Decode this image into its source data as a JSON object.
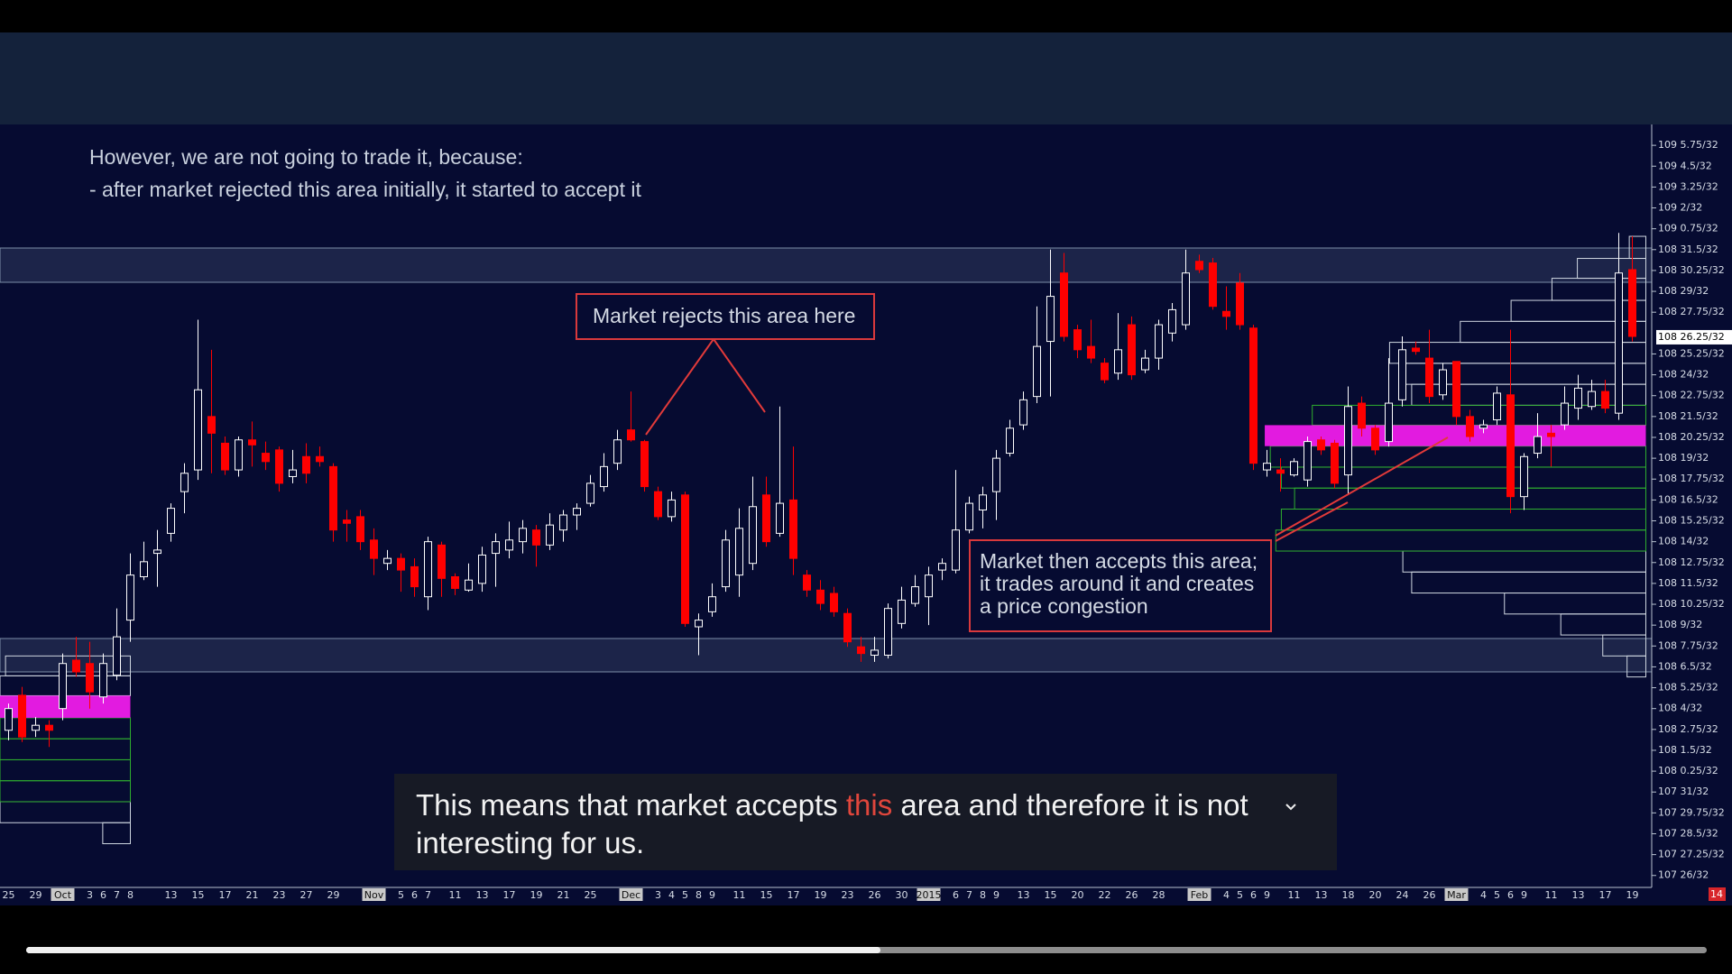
{
  "notes": [
    "However, we are not going to trade it, because:",
    "- after market rejected this area initially, it started to accept it"
  ],
  "annotations": [
    {
      "text": "Market rejects this area here"
    },
    {
      "lines": [
        "Market then accepts this area;",
        "it trades around it and creates",
        "a price congestion"
      ]
    }
  ],
  "caption": {
    "parts": [
      "This means that market accepts ",
      "this",
      " area and therefore it is not interesting for us."
    ]
  },
  "corner_label": "14",
  "chart_data": {
    "type": "candlestick",
    "categories": [
      "25",
      null,
      "29",
      null,
      "Oct",
      null,
      "3",
      "6",
      "7",
      "8",
      null,
      null,
      "13",
      null,
      "15",
      null,
      "17",
      null,
      "21",
      null,
      "23",
      null,
      "27",
      null,
      "29",
      null,
      null,
      "Nov",
      null,
      "5",
      "6",
      "7",
      null,
      "11",
      null,
      "13",
      null,
      "17",
      null,
      "19",
      null,
      "21",
      null,
      "25",
      null,
      null,
      "Dec",
      null,
      "3",
      "4",
      "5",
      "8",
      "9",
      null,
      "11",
      null,
      "15",
      null,
      "17",
      null,
      "19",
      null,
      "23",
      null,
      "26",
      null,
      "30",
      null,
      "2015",
      null,
      "6",
      "7",
      "8",
      "9",
      null,
      "13",
      null,
      "15",
      null,
      "20",
      null,
      "22",
      null,
      "26",
      null,
      "28",
      null,
      null,
      "Feb",
      null,
      "4",
      "5",
      "6",
      "9",
      null,
      "11",
      null,
      "13",
      null,
      "18",
      null,
      "20",
      null,
      "24",
      null,
      "26",
      null,
      "Mar",
      null,
      "4",
      "5",
      "6",
      "9",
      null,
      "11",
      null,
      "13",
      null,
      "17",
      null,
      "19"
    ],
    "open": [
      3458.7,
      3460.8,
      3458.7,
      3459,
      3460,
      3462.9,
      3462.7,
      3460.7,
      3462,
      3465.3,
      3467.9,
      3469.3,
      3470.5,
      3473,
      3474.3,
      3477.5,
      3475.9,
      3474.3,
      3476.1,
      3475.3,
      3475.5,
      3473.9,
      3475.1,
      3475.1,
      3474.5,
      3471.3,
      3471.5,
      3470.1,
      3468.7,
      3469,
      3468.5,
      3466.7,
      3469.8,
      3467.9,
      3467.1,
      3467.5,
      3469.3,
      3469.5,
      3470,
      3470.7,
      3469.8,
      3470.7,
      3471.6,
      3472.3,
      3473.3,
      3474.7,
      3476.7,
      3476,
      3473,
      3471.5,
      3472.8,
      3464.9,
      3465.8,
      3467.3,
      3468,
      3468.7,
      3472.8,
      3470.5,
      3472.5,
      3468,
      3467.1,
      3466.9,
      3465.7,
      3463.7,
      3463.2,
      3463.2,
      3465.1,
      3466.3,
      3466.7,
      3468.3,
      3468.3,
      3470.7,
      3471.9,
      3473,
      3475.3,
      3477,
      3478.7,
      3482,
      3486.1,
      3482.7,
      3481.7,
      3480.7,
      3480.1,
      3483,
      3480.3,
      3481,
      3482.5,
      3483,
      3486.8,
      3486.7,
      3483.8,
      3485.5,
      3482.8,
      3474.3,
      3474.3,
      3474,
      3473.7,
      3476.1,
      3475.9,
      3474,
      3478.3,
      3476.8,
      3476,
      3478.5,
      3481.6,
      3481,
      3478.8,
      3480.8,
      3477.5,
      3476.8,
      3477.3,
      3478.8,
      3472.7,
      3475.3,
      3476.5,
      3477,
      3478,
      3478.1,
      3479,
      3477.7,
      3486.3
    ],
    "high": [
      3460.3,
      3461.3,
      3459.5,
      3459.3,
      3463.3,
      3464.3,
      3464,
      3463.3,
      3466,
      3469.3,
      3470,
      3470.7,
      3472.3,
      3474.7,
      3483.3,
      3481.5,
      3476.3,
      3476.3,
      3477.2,
      3476,
      3475.7,
      3475.5,
      3475.9,
      3475.7,
      3474.7,
      3471.9,
      3471.9,
      3470.8,
      3469.5,
      3469.3,
      3469,
      3470.3,
      3470,
      3468.1,
      3468.7,
      3469.7,
      3470.5,
      3471.2,
      3471.3,
      3471,
      3471.7,
      3471.9,
      3472.3,
      3474,
      3475.3,
      3476.7,
      3479,
      3476.1,
      3473.3,
      3473,
      3473,
      3465.7,
      3467.5,
      3470.7,
      3472,
      3473.9,
      3473.9,
      3478.1,
      3475.7,
      3468.3,
      3467.7,
      3467.3,
      3466,
      3464.3,
      3464.3,
      3466.3,
      3467.3,
      3468,
      3468.5,
      3469,
      3474.3,
      3472.7,
      3473.3,
      3475.5,
      3477.3,
      3479,
      3484.1,
      3487.5,
      3487.3,
      3483,
      3483.3,
      3481,
      3483.7,
      3483.5,
      3481.5,
      3483.3,
      3484.3,
      3487.5,
      3487.2,
      3487,
      3485.3,
      3486.1,
      3483,
      3475.5,
      3475,
      3475,
      3476.3,
      3476.3,
      3476.1,
      3479.3,
      3478.7,
      3477,
      3481,
      3482.3,
      3482,
      3482.7,
      3480.7,
      3480.8,
      3477.9,
      3477.3,
      3479.3,
      3482.7,
      3475.3,
      3477.7,
      3477,
      3479.3,
      3480,
      3479.7,
      3479.7,
      3488.5,
      3488.3
    ],
    "low": [
      3458.1,
      3458,
      3458.3,
      3457.7,
      3459.3,
      3461.9,
      3460,
      3460.3,
      3461.7,
      3464,
      3467.7,
      3467.3,
      3470,
      3471.7,
      3473.7,
      3474.1,
      3474,
      3473.9,
      3474.5,
      3474.3,
      3473,
      3473.5,
      3473.5,
      3474.5,
      3470,
      3470,
      3469.5,
      3468,
      3468.3,
      3467,
      3466.7,
      3465.9,
      3466.7,
      3466.8,
      3467,
      3467,
      3467.3,
      3469,
      3469.3,
      3468.5,
      3469.5,
      3470,
      3470.7,
      3472.1,
      3473,
      3474.3,
      3476,
      3473,
      3471.3,
      3471.2,
      3464.9,
      3463.2,
      3465.5,
      3467,
      3466.7,
      3468.3,
      3469.7,
      3470.3,
      3468,
      3466.7,
      3465.9,
      3465.5,
      3463.7,
      3462.8,
      3462.8,
      3463,
      3464.8,
      3466.1,
      3465,
      3467.7,
      3468.1,
      3470.5,
      3470.8,
      3471.3,
      3475.1,
      3476.7,
      3478.3,
      3478.7,
      3482,
      3481,
      3480.7,
      3479.5,
      3479.7,
      3479.7,
      3480.1,
      3480.3,
      3482,
      3482.7,
      3486.1,
      3483.9,
      3482.7,
      3482.7,
      3474.3,
      3473.9,
      3473,
      3473.9,
      3473.3,
      3475.2,
      3473.2,
      3472.8,
      3476.3,
      3475.2,
      3475.7,
      3478.1,
      3481.2,
      3478.3,
      3478.5,
      3477,
      3476,
      3476.5,
      3477,
      3471.7,
      3471.9,
      3475,
      3474.5,
      3476.7,
      3477.3,
      3477.9,
      3477.7,
      3477.3,
      3482
    ],
    "close": [
      3460,
      3458.3,
      3459,
      3458.7,
      3462.7,
      3462.2,
      3461,
      3462.7,
      3464.3,
      3468,
      3468.8,
      3469.5,
      3472,
      3474.1,
      3479.1,
      3476.5,
      3474.3,
      3476.1,
      3475.8,
      3474.8,
      3473.5,
      3474.3,
      3474.1,
      3474.8,
      3470.7,
      3471.1,
      3470,
      3469,
      3469,
      3468.3,
      3467.3,
      3470,
      3467.8,
      3467.2,
      3467.7,
      3469.2,
      3470,
      3470.1,
      3470.8,
      3469.8,
      3471,
      3471.6,
      3472,
      3473.5,
      3474.5,
      3476.1,
      3476.1,
      3473.3,
      3471.5,
      3472.5,
      3465.1,
      3465.3,
      3466.7,
      3470.1,
      3470.8,
      3472.1,
      3470,
      3472.3,
      3469,
      3467.1,
      3466.3,
      3465.8,
      3464,
      3463.3,
      3463.5,
      3466,
      3466.5,
      3467.3,
      3468,
      3468.7,
      3470.7,
      3472.3,
      3472.8,
      3475,
      3476.8,
      3478.5,
      3481.7,
      3484.7,
      3482.3,
      3481.5,
      3481,
      3479.7,
      3481.5,
      3480,
      3481,
      3483,
      3483.9,
      3486.1,
      3486.3,
      3484.1,
      3483.5,
      3483,
      3474.7,
      3474.7,
      3474.1,
      3474.8,
      3476,
      3475.5,
      3473.5,
      3478.1,
      3476.8,
      3475.5,
      3478.3,
      3481.5,
      3481.4,
      3478.7,
      3480.3,
      3477.5,
      3476.3,
      3477,
      3478.9,
      3472.7,
      3475.1,
      3476.3,
      3476.3,
      3478.3,
      3479.2,
      3479,
      3478,
      3486.1,
      3482.3
    ],
    "up_color": "#ffffff",
    "down_color": "#ff0000",
    "ylim": [
      3449.5,
      3495
    ],
    "yticks": [
      {
        "value": 3493.75,
        "label": "109 5.75/32"
      },
      {
        "value": 3492.5,
        "label": "109 4.5/32"
      },
      {
        "value": 3491.25,
        "label": "109 3.25/32"
      },
      {
        "value": 3490,
        "label": "109 2/32"
      },
      {
        "value": 3488.75,
        "label": "109 0.75/32"
      },
      {
        "value": 3487.5,
        "label": "108 31.5/32"
      },
      {
        "value": 3486.25,
        "label": "108 30.25/32"
      },
      {
        "value": 3485,
        "label": "108 29/32"
      },
      {
        "value": 3483.75,
        "label": "108 27.75/32"
      },
      {
        "value": 3481.25,
        "label": "108 25.25/32"
      },
      {
        "value": 3480,
        "label": "108 24/32"
      },
      {
        "value": 3478.75,
        "label": "108 22.75/32"
      },
      {
        "value": 3477.5,
        "label": "108 21.5/32"
      },
      {
        "value": 3476.25,
        "label": "108 20.25/32"
      },
      {
        "value": 3475,
        "label": "108 19/32"
      },
      {
        "value": 3473.75,
        "label": "108 17.75/32"
      },
      {
        "value": 3472.5,
        "label": "108 16.5/32"
      },
      {
        "value": 3471.25,
        "label": "108 15.25/32"
      },
      {
        "value": 3470,
        "label": "108 14/32"
      },
      {
        "value": 3468.75,
        "label": "108 12.75/32"
      },
      {
        "value": 3467.5,
        "label": "108 11.5/32"
      },
      {
        "value": 3466.25,
        "label": "108 10.25/32"
      },
      {
        "value": 3465,
        "label": "108 9/32"
      },
      {
        "value": 3463.75,
        "label": "108 7.75/32"
      },
      {
        "value": 3462.5,
        "label": "108 6.5/32"
      },
      {
        "value": 3461.25,
        "label": "108 5.25/32"
      },
      {
        "value": 3460,
        "label": "108 4/32"
      },
      {
        "value": 3458.75,
        "label": "108 2.75/32"
      },
      {
        "value": 3457.5,
        "label": "108 1.5/32"
      },
      {
        "value": 3456.25,
        "label": "108 0.25/32"
      },
      {
        "value": 3455,
        "label": "107 31/32"
      },
      {
        "value": 3453.75,
        "label": "107 29.75/32"
      },
      {
        "value": 3452.5,
        "label": "107 28.5/32"
      },
      {
        "value": 3451.25,
        "label": "107 27.25/32"
      },
      {
        "value": 3450,
        "label": "107 26/32"
      }
    ],
    "last_price": {
      "value": 3482.25,
      "label": "108 26.25/32"
    }
  }
}
